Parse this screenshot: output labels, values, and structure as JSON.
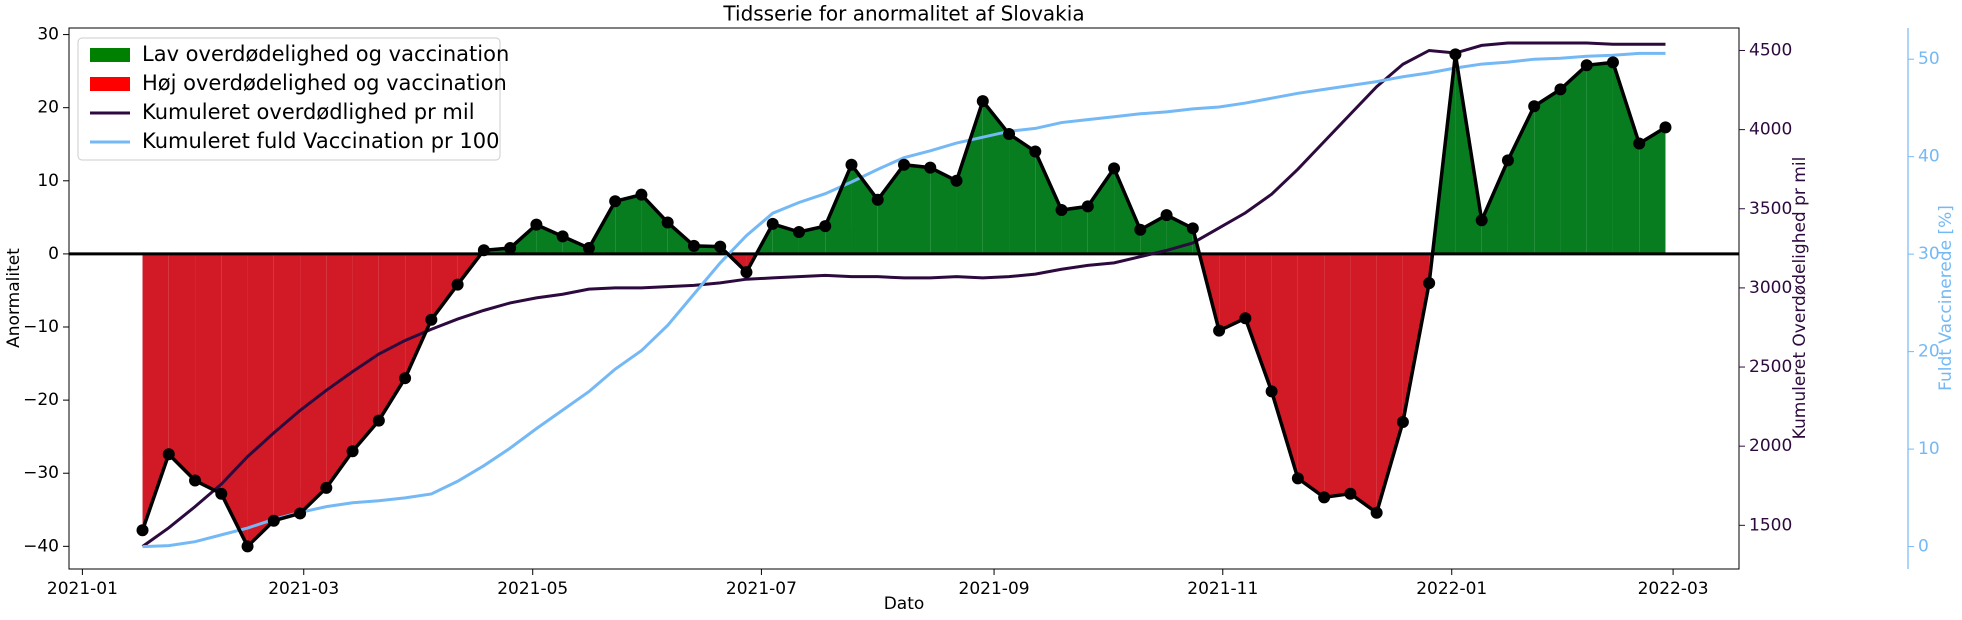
{
  "chart_data": {
    "type": "area-line",
    "title": "Tidsserie for anormalitet af Slovakia",
    "xlabel": "Dato",
    "ylabel": "Anormalitet",
    "y2label": "Kumuleret Overdødelighed pr mil",
    "y3label": "Fuldt Vaccinerede [%]",
    "x": [
      0,
      1,
      2,
      3,
      4,
      5,
      6,
      7,
      8,
      9,
      10,
      11,
      12,
      13,
      14,
      15,
      16,
      17,
      18,
      19,
      20,
      21,
      22,
      23,
      24,
      25,
      26,
      27,
      28,
      29,
      30,
      31,
      32,
      33,
      34,
      35,
      36,
      37,
      38,
      39,
      40,
      41,
      42,
      43,
      44,
      45,
      46,
      47,
      48,
      49,
      50,
      51,
      52,
      53,
      54,
      55,
      56,
      57,
      58
    ],
    "xlim": [
      -2.8,
      60.8
    ],
    "xticks": [
      {
        "value": -2.29,
        "label": "2021-01"
      },
      {
        "value": 6.14,
        "label": "2021-03"
      },
      {
        "value": 14.86,
        "label": "2021-05"
      },
      {
        "value": 23.57,
        "label": "2021-07"
      },
      {
        "value": 32.43,
        "label": "2021-09"
      },
      {
        "value": 41.14,
        "label": "2021-11"
      },
      {
        "value": 49.86,
        "label": "2022-01"
      },
      {
        "value": 58.29,
        "label": "2022-03"
      }
    ],
    "ylim": [
      -43.1,
      30.9
    ],
    "yticks": [
      {
        "value": -40,
        "label": "−40"
      },
      {
        "value": -30,
        "label": "−30"
      },
      {
        "value": -20,
        "label": "−20"
      },
      {
        "value": -10,
        "label": "−10"
      },
      0,
      10,
      20,
      30
    ],
    "y2lim": [
      1224,
      4642
    ],
    "y2ticks": [
      1500,
      2000,
      2500,
      3000,
      3500,
      4000,
      4500
    ],
    "y2color": "#2d0a3e",
    "y3lim": [
      -2.3,
      53.2
    ],
    "y3ticks": [
      0,
      10,
      20,
      30,
      40,
      50
    ],
    "y3color": "#74b9f5",
    "legend": "upper left",
    "fills": [
      {
        "name": "Lav overdødelighed og vaccination",
        "color": "#077d20",
        "legend_color": "#008000"
      },
      {
        "name": "Høj overdødelighed og vaccination",
        "color": "#d21a27",
        "legend_color": "#ff0000"
      }
    ],
    "anomaly": {
      "color": "#000000",
      "values": [
        -37.8,
        -27.4,
        -31,
        -32.8,
        -40,
        -36.5,
        -35.5,
        -32,
        -27,
        -22.8,
        -17,
        -9,
        -4.2,
        0.5,
        0.8,
        4,
        2.4,
        0.8,
        7.2,
        8.1,
        4.3,
        1.1,
        1,
        -2.5,
        4.1,
        3,
        3.8,
        12.2,
        7.4,
        12.2,
        11.8,
        10,
        20.9,
        16.4,
        14,
        6,
        6.5,
        11.7,
        3.3,
        5.3,
        3.5,
        -10.5,
        -8.8,
        -18.8,
        -30.7,
        -33.3,
        -32.8,
        -35.4,
        -23,
        -4,
        27.3,
        4.6,
        12.8,
        20.2,
        22.5,
        25.8,
        26.2,
        15.1,
        17.3
      ]
    },
    "series": [
      {
        "name": "Kumuleret overdødlighed pr mil",
        "color": "#2d0a3e",
        "axis": "y2",
        "values": [
          1366,
          1484,
          1618,
          1760,
          1934,
          2084,
          2226,
          2353,
          2471,
          2582,
          2668,
          2739,
          2803,
          2858,
          2905,
          2937,
          2960,
          2992,
          3000,
          3000,
          3008,
          3016,
          3032,
          3055,
          3063,
          3071,
          3079,
          3071,
          3071,
          3063,
          3063,
          3071,
          3063,
          3071,
          3087,
          3118,
          3142,
          3158,
          3197,
          3237,
          3284,
          3379,
          3474,
          3592,
          3750,
          3924,
          4098,
          4271,
          4413,
          4500,
          4484,
          4532,
          4547,
          4547,
          4547,
          4547,
          4539,
          4539,
          4539
        ]
      },
      {
        "name": "Kumuleret fuld Vaccination pr 100",
        "color": "#74b9f5",
        "axis": "y3",
        "values": [
          0,
          0.1,
          0.5,
          1.2,
          1.9,
          2.8,
          3.5,
          4.1,
          4.5,
          4.7,
          5,
          5.4,
          6.7,
          8.3,
          10.1,
          12.1,
          14,
          15.9,
          18.2,
          20.1,
          22.7,
          25.9,
          29.1,
          31.9,
          34.2,
          35.3,
          36.2,
          37.4,
          38.7,
          39.9,
          40.6,
          41.4,
          42,
          42.6,
          42.9,
          43.5,
          43.8,
          44.1,
          44.4,
          44.6,
          44.9,
          45.1,
          45.5,
          46,
          46.5,
          46.9,
          47.3,
          47.7,
          48.2,
          48.6,
          49.1,
          49.5,
          49.7,
          50,
          50.1,
          50.3,
          50.4,
          50.6,
          50.6
        ]
      }
    ]
  }
}
